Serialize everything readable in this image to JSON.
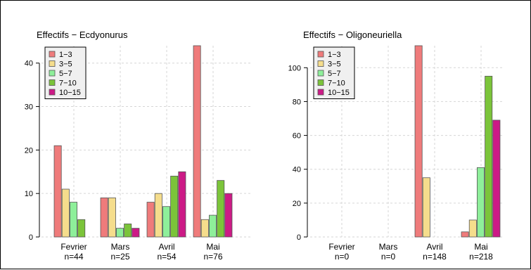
{
  "palette": {
    "1-3": "#EF7B7B",
    "3-5": "#F5DD8C",
    "5-7": "#8EEF9A",
    "7-10": "#7BC43A",
    "10-15": "#CC1A86"
  },
  "chart_data": [
    {
      "type": "bar",
      "title": "Effectifs − Ecdyonurus",
      "categories": [
        "Fevrier",
        "Mars",
        "Avril",
        "Mai"
      ],
      "category_counts": [
        "n=44",
        "n=25",
        "n=54",
        "n=76"
      ],
      "ylim": [
        0,
        44
      ],
      "yticks": [
        0,
        10,
        20,
        30,
        40
      ],
      "grid": true,
      "legend_position": "top-left",
      "series": [
        {
          "name": "1−3",
          "key": "1-3",
          "values": [
            21,
            9,
            8,
            44
          ]
        },
        {
          "name": "3−5",
          "key": "3-5",
          "values": [
            11,
            9,
            10,
            4
          ]
        },
        {
          "name": "5−7",
          "key": "5-7",
          "values": [
            8,
            2,
            7,
            5
          ]
        },
        {
          "name": "7−10",
          "key": "7-10",
          "values": [
            4,
            3,
            14,
            13
          ]
        },
        {
          "name": "10−15",
          "key": "10-15",
          "values": [
            0,
            2,
            15,
            10
          ]
        }
      ]
    },
    {
      "type": "bar",
      "title": "Effectifs − Oligoneuriella",
      "categories": [
        "Fevrier",
        "Mars",
        "Avril",
        "Mai"
      ],
      "category_counts": [
        "n=0",
        "n=0",
        "n=148",
        "n=218"
      ],
      "ylim": [
        0,
        113
      ],
      "yticks": [
        0,
        20,
        40,
        60,
        80,
        100
      ],
      "grid": true,
      "legend_position": "top-left",
      "series": [
        {
          "name": "1−3",
          "key": "1-3",
          "values": [
            0,
            0,
            113,
            3
          ]
        },
        {
          "name": "3−5",
          "key": "3-5",
          "values": [
            0,
            0,
            35,
            10
          ]
        },
        {
          "name": "5−7",
          "key": "5-7",
          "values": [
            0,
            0,
            0,
            41
          ]
        },
        {
          "name": "7−10",
          "key": "7-10",
          "values": [
            0,
            0,
            0,
            95
          ]
        },
        {
          "name": "10−15",
          "key": "10-15",
          "values": [
            0,
            0,
            0,
            69
          ]
        }
      ]
    }
  ]
}
